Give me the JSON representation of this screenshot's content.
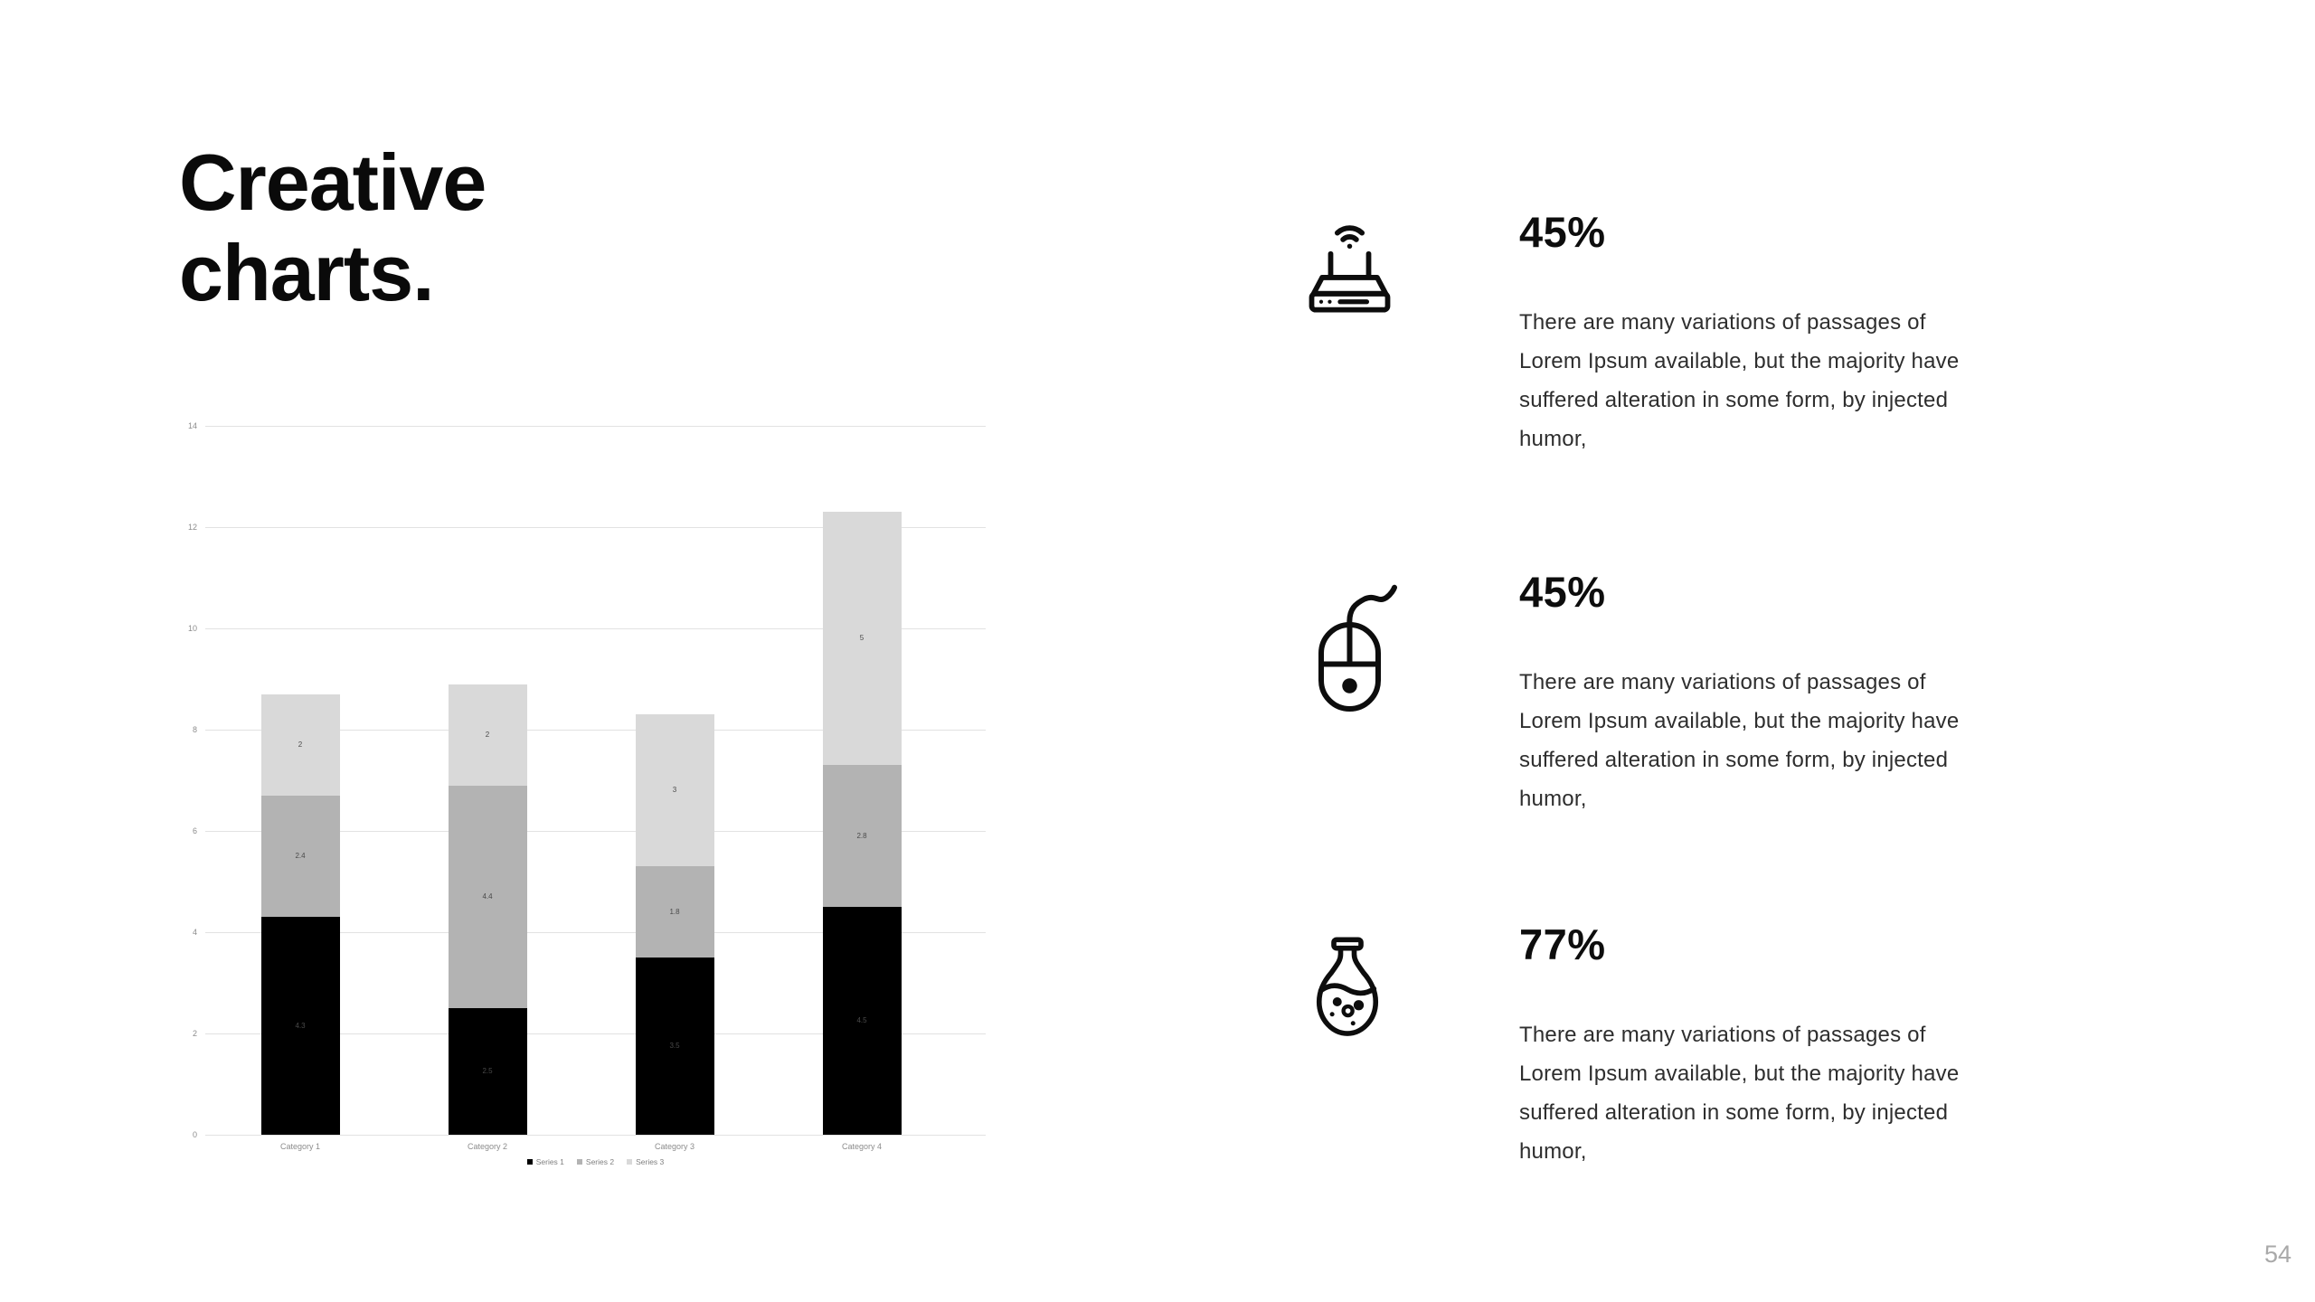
{
  "slide": {
    "title": "Creative charts.",
    "page_number": "54"
  },
  "chart_data": {
    "type": "bar",
    "stacked": true,
    "categories": [
      "Category 1",
      "Category 2",
      "Category 3",
      "Category 4"
    ],
    "series": [
      {
        "name": "Series 1",
        "color": "#000000",
        "values": [
          4.3,
          2.5,
          3.5,
          4.5
        ]
      },
      {
        "name": "Series 2",
        "color": "#b3b3b3",
        "values": [
          2.4,
          4.4,
          1.8,
          2.8
        ]
      },
      {
        "name": "Series 3",
        "color": "#d9d9d9",
        "values": [
          2,
          2,
          3,
          5
        ]
      }
    ],
    "ylim": [
      0,
      14
    ],
    "yticks": [
      0,
      2,
      4,
      6,
      8,
      10,
      12,
      14
    ],
    "grid": true,
    "legend_position": "bottom",
    "label_color": "#4a4a4a"
  },
  "stats": [
    {
      "icon": "wifi-router-icon",
      "value": "45%",
      "description": "There are many variations of passages of Lorem Ipsum available, but the majority have suffered alteration in some form, by injected humor,"
    },
    {
      "icon": "computer-mouse-icon",
      "value": "45%",
      "description": "There are many variations of passages of Lorem Ipsum available, but the majority have suffered alteration in some form, by injected humor,"
    },
    {
      "icon": "flask-icon",
      "value": "77%",
      "description": "There are many variations of passages of Lorem Ipsum available, but the majority have suffered alteration in some form, by injected humor,"
    }
  ]
}
